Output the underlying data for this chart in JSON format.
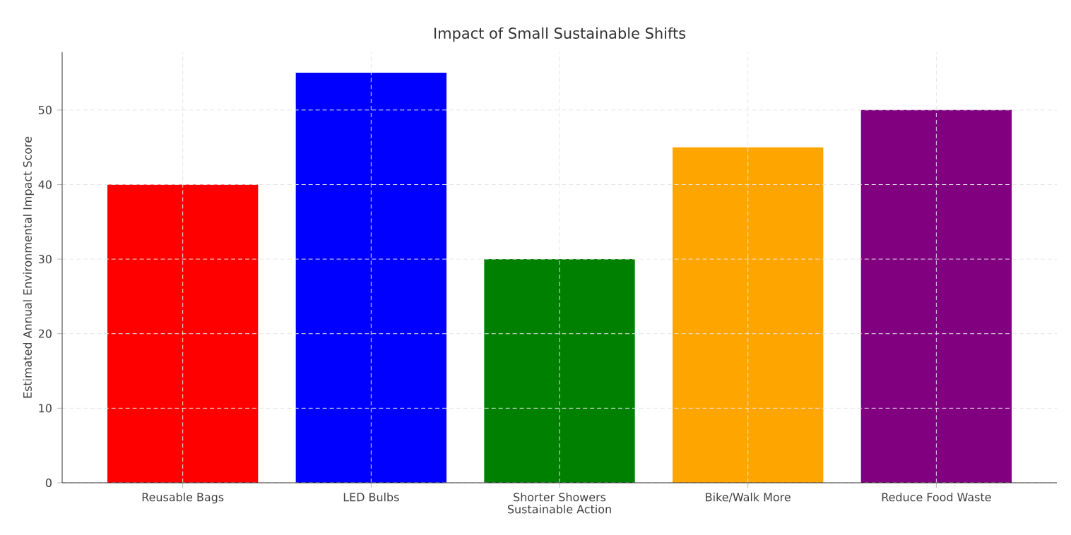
{
  "chart_data": {
    "type": "bar",
    "title": "Impact of Small Sustainable Shifts",
    "xlabel": "Sustainable Action",
    "ylabel": "Estimated Annual Environmental Impact Score",
    "categories": [
      "Reusable Bags",
      "LED Bulbs",
      "Shorter Showers",
      "Bike/Walk More",
      "Reduce Food Waste"
    ],
    "values": [
      40,
      55,
      30,
      45,
      50
    ],
    "colors": [
      "#ff0000",
      "#0000ff",
      "#008000",
      "#ffa500",
      "#800080"
    ],
    "ylim": [
      0,
      57.75
    ],
    "yticks": [
      0,
      10,
      20,
      30,
      40,
      50
    ],
    "grid": true
  }
}
